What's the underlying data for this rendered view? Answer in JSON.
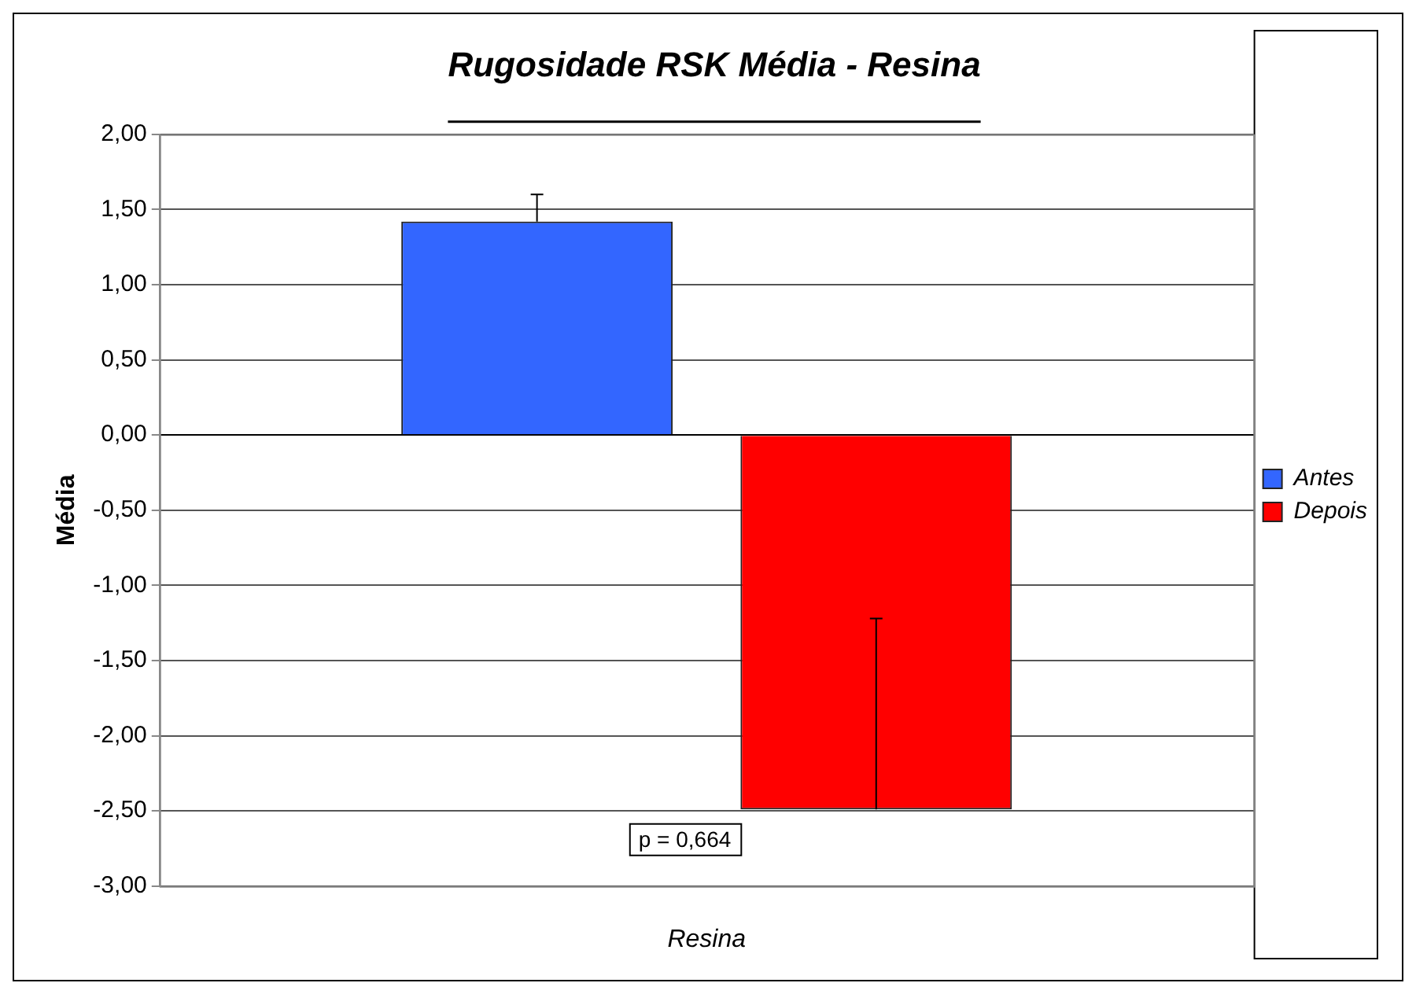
{
  "chart_data": {
    "type": "bar",
    "title": "Rugosidade RSK Média - Resina",
    "xlabel": "Resina",
    "ylabel": "Média",
    "categories": [
      null
    ],
    "series": [
      {
        "name": "Antes",
        "color": "#3366ff",
        "values": [
          1.42
        ],
        "errors": [
          [
            1.42,
            1.6
          ]
        ]
      },
      {
        "name": "Depois",
        "color": "#ff0000",
        "values": [
          -2.49
        ],
        "errors": [
          [
            -2.49,
            -1.22
          ]
        ]
      }
    ],
    "ylim": [
      -3,
      2
    ],
    "yticks": [
      {
        "value": -3,
        "label": "-3,00"
      },
      {
        "value": -2.5,
        "label": "-2,50"
      },
      {
        "value": -2,
        "label": "-2,00"
      },
      {
        "value": -1.5,
        "label": "-1,50"
      },
      {
        "value": -1,
        "label": "-1,00"
      },
      {
        "value": -0.5,
        "label": "-0,50"
      },
      {
        "value": 0,
        "label": "0,00"
      },
      {
        "value": 0.5,
        "label": "0,50"
      },
      {
        "value": 1,
        "label": "1,00"
      },
      {
        "value": 1.5,
        "label": "1,50"
      },
      {
        "value": 2,
        "label": "2,00"
      }
    ],
    "grid": "y",
    "legend": "right",
    "annotations": [
      "p = 0,664"
    ]
  }
}
